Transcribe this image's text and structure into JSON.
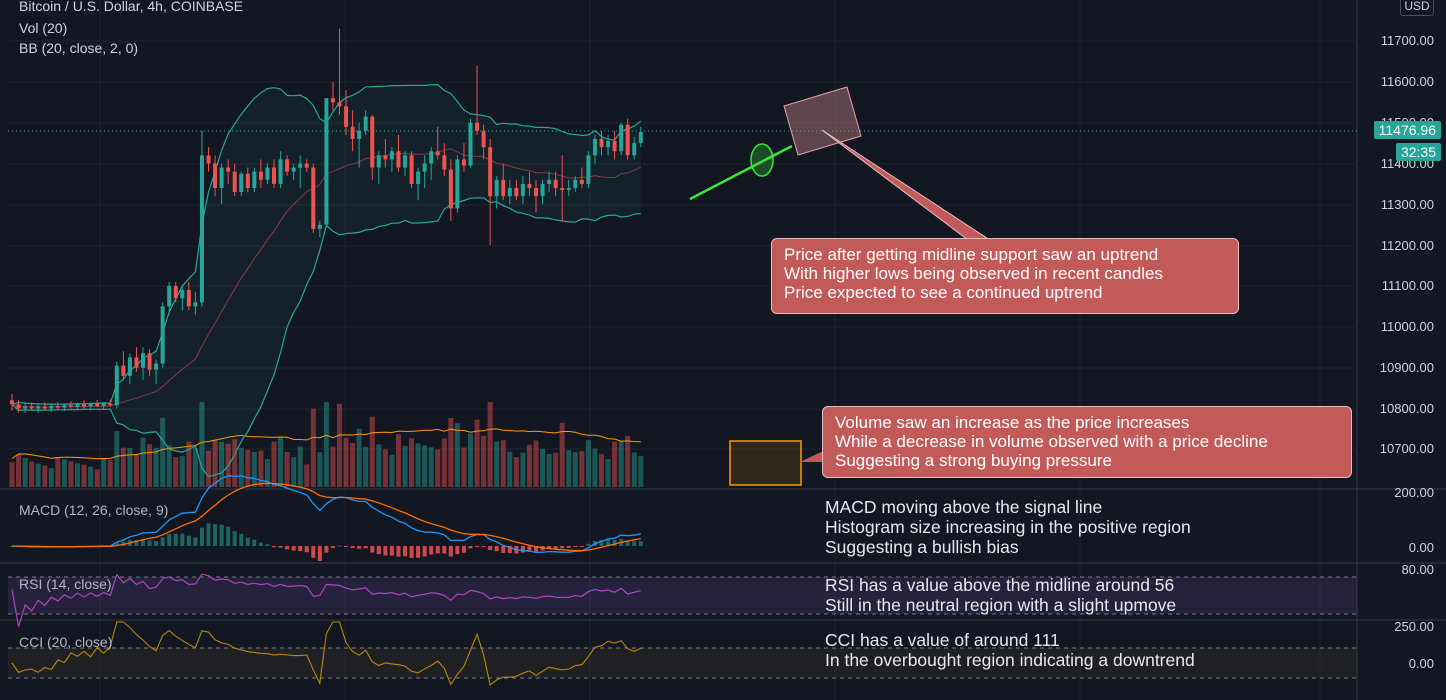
{
  "header": {
    "title": "Bitcoin / U.S. Dollar, 4h, COINBASE",
    "vol_label": "Vol (20)",
    "bb_label": "BB (20, close, 2, 0)",
    "currency": "USD"
  },
  "price_axis": {
    "labels": [
      "11700.00",
      "11600.00",
      "11500.00",
      "11400.00",
      "11300.00",
      "11200.00",
      "11100.00",
      "11000.00",
      "10900.00",
      "10800.00",
      "10700.00"
    ],
    "last_price": "11476.96",
    "countdown": "32:35"
  },
  "macd": {
    "label": "MACD (12, 26, close, 9)",
    "axis": [
      "200.00",
      "0.00"
    ],
    "notes": [
      "MACD moving above the signal line",
      "Histogram size increasing in the positive region",
      "Suggesting a bullish bias"
    ]
  },
  "rsi": {
    "label": "RSI (14, close)",
    "axis": [
      "80.00"
    ],
    "notes": [
      "RSI has a value above the midline around 56",
      "Still in the neutral region with a slight upmove"
    ]
  },
  "cci": {
    "label": "CCI (20, close)",
    "axis": [
      "250.00",
      "0.00"
    ],
    "notes": [
      "CCI has a value of around 111",
      "In the overbought region indicating a downtrend"
    ]
  },
  "callouts": {
    "price": [
      "Price after getting midline support saw an uptrend",
      "With higher lows being observed in recent candles",
      "Price expected to see a continued uptrend"
    ],
    "volume": [
      "Volume saw an increase as the price increases",
      "While a decrease in volume observed with a price decline",
      "Suggesting a strong buying pressure"
    ]
  },
  "colors": {
    "up": "#26a69a",
    "down": "#ef5350",
    "band": "#26a69a",
    "callout": "#c35a5a",
    "background": "#131722"
  },
  "chart_data": {
    "type": "candlestick",
    "title": "Bitcoin / U.S. Dollar, 4h, COINBASE",
    "ylim": [
      10660,
      11760
    ],
    "candles": [
      {
        "o": 10820,
        "h": 10835,
        "l": 10795,
        "c": 10810
      },
      {
        "o": 10810,
        "h": 10820,
        "l": 10790,
        "c": 10800
      },
      {
        "o": 10800,
        "h": 10815,
        "l": 10790,
        "c": 10805
      },
      {
        "o": 10805,
        "h": 10815,
        "l": 10795,
        "c": 10800
      },
      {
        "o": 10800,
        "h": 10810,
        "l": 10790,
        "c": 10805
      },
      {
        "o": 10805,
        "h": 10815,
        "l": 10795,
        "c": 10800
      },
      {
        "o": 10800,
        "h": 10810,
        "l": 10792,
        "c": 10806
      },
      {
        "o": 10806,
        "h": 10816,
        "l": 10798,
        "c": 10802
      },
      {
        "o": 10802,
        "h": 10812,
        "l": 10794,
        "c": 10808
      },
      {
        "o": 10808,
        "h": 10818,
        "l": 10800,
        "c": 10804
      },
      {
        "o": 10804,
        "h": 10814,
        "l": 10796,
        "c": 10810
      },
      {
        "o": 10810,
        "h": 10820,
        "l": 10800,
        "c": 10805
      },
      {
        "o": 10805,
        "h": 10815,
        "l": 10795,
        "c": 10811
      },
      {
        "o": 10811,
        "h": 10821,
        "l": 10803,
        "c": 10806
      },
      {
        "o": 10806,
        "h": 10816,
        "l": 10798,
        "c": 10812
      },
      {
        "o": 10812,
        "h": 10822,
        "l": 10804,
        "c": 10808
      },
      {
        "o": 10808,
        "h": 10915,
        "l": 10800,
        "c": 10905
      },
      {
        "o": 10905,
        "h": 10940,
        "l": 10870,
        "c": 10880
      },
      {
        "o": 10880,
        "h": 10935,
        "l": 10860,
        "c": 10925
      },
      {
        "o": 10925,
        "h": 10950,
        "l": 10890,
        "c": 10900
      },
      {
        "o": 10900,
        "h": 10950,
        "l": 10870,
        "c": 10935
      },
      {
        "o": 10935,
        "h": 10945,
        "l": 10880,
        "c": 10895
      },
      {
        "o": 10895,
        "h": 10920,
        "l": 10860,
        "c": 10910
      },
      {
        "o": 10910,
        "h": 11060,
        "l": 10900,
        "c": 11050
      },
      {
        "o": 11050,
        "h": 11110,
        "l": 11030,
        "c": 11100
      },
      {
        "o": 11100,
        "h": 11110,
        "l": 11060,
        "c": 11070
      },
      {
        "o": 11070,
        "h": 11100,
        "l": 11040,
        "c": 11090
      },
      {
        "o": 11090,
        "h": 11110,
        "l": 11040,
        "c": 11050
      },
      {
        "o": 11050,
        "h": 11085,
        "l": 11030,
        "c": 11060
      },
      {
        "o": 11060,
        "h": 11480,
        "l": 11050,
        "c": 11420
      },
      {
        "o": 11420,
        "h": 11440,
        "l": 11380,
        "c": 11400
      },
      {
        "o": 11400,
        "h": 11420,
        "l": 11320,
        "c": 11340
      },
      {
        "o": 11340,
        "h": 11400,
        "l": 11300,
        "c": 11390
      },
      {
        "o": 11390,
        "h": 11410,
        "l": 11350,
        "c": 11380
      },
      {
        "o": 11380,
        "h": 11400,
        "l": 11320,
        "c": 11330
      },
      {
        "o": 11330,
        "h": 11380,
        "l": 11320,
        "c": 11375
      },
      {
        "o": 11375,
        "h": 11390,
        "l": 11330,
        "c": 11340
      },
      {
        "o": 11340,
        "h": 11390,
        "l": 11330,
        "c": 11380
      },
      {
        "o": 11380,
        "h": 11410,
        "l": 11340,
        "c": 11360
      },
      {
        "o": 11360,
        "h": 11400,
        "l": 11350,
        "c": 11390
      },
      {
        "o": 11390,
        "h": 11410,
        "l": 11340,
        "c": 11350
      },
      {
        "o": 11350,
        "h": 11430,
        "l": 11340,
        "c": 11410
      },
      {
        "o": 11410,
        "h": 11420,
        "l": 11370,
        "c": 11380
      },
      {
        "o": 11380,
        "h": 11400,
        "l": 11360,
        "c": 11390
      },
      {
        "o": 11390,
        "h": 11420,
        "l": 11340,
        "c": 11400
      },
      {
        "o": 11400,
        "h": 11410,
        "l": 11380,
        "c": 11390
      },
      {
        "o": 11390,
        "h": 11400,
        "l": 11230,
        "c": 11240
      },
      {
        "o": 11240,
        "h": 11260,
        "l": 11220,
        "c": 11250
      },
      {
        "o": 11250,
        "h": 11560,
        "l": 11250,
        "c": 11560
      },
      {
        "o": 11560,
        "h": 11600,
        "l": 11530,
        "c": 11550
      },
      {
        "o": 11550,
        "h": 11730,
        "l": 11520,
        "c": 11540
      },
      {
        "o": 11540,
        "h": 11580,
        "l": 11470,
        "c": 11490
      },
      {
        "o": 11490,
        "h": 11530,
        "l": 11430,
        "c": 11460
      },
      {
        "o": 11460,
        "h": 11500,
        "l": 11390,
        "c": 11480
      },
      {
        "o": 11480,
        "h": 11530,
        "l": 11470,
        "c": 11515
      },
      {
        "o": 11515,
        "h": 11520,
        "l": 11360,
        "c": 11390
      },
      {
        "o": 11390,
        "h": 11430,
        "l": 11350,
        "c": 11420
      },
      {
        "o": 11420,
        "h": 11460,
        "l": 11390,
        "c": 11410
      },
      {
        "o": 11410,
        "h": 11440,
        "l": 11380,
        "c": 11430
      },
      {
        "o": 11430,
        "h": 11470,
        "l": 11380,
        "c": 11390
      },
      {
        "o": 11390,
        "h": 11430,
        "l": 11370,
        "c": 11420
      },
      {
        "o": 11420,
        "h": 11430,
        "l": 11340,
        "c": 11350
      },
      {
        "o": 11350,
        "h": 11390,
        "l": 11310,
        "c": 11380
      },
      {
        "o": 11380,
        "h": 11420,
        "l": 11340,
        "c": 11400
      },
      {
        "o": 11400,
        "h": 11440,
        "l": 11360,
        "c": 11430
      },
      {
        "o": 11430,
        "h": 11490,
        "l": 11410,
        "c": 11420
      },
      {
        "o": 11420,
        "h": 11450,
        "l": 11370,
        "c": 11385
      },
      {
        "o": 11385,
        "h": 11410,
        "l": 11260,
        "c": 11290
      },
      {
        "o": 11290,
        "h": 11420,
        "l": 11280,
        "c": 11410
      },
      {
        "o": 11410,
        "h": 11450,
        "l": 11380,
        "c": 11395
      },
      {
        "o": 11395,
        "h": 11510,
        "l": 11390,
        "c": 11500
      },
      {
        "o": 11500,
        "h": 11640,
        "l": 11470,
        "c": 11480
      },
      {
        "o": 11480,
        "h": 11495,
        "l": 11410,
        "c": 11440
      },
      {
        "o": 11440,
        "h": 11460,
        "l": 11200,
        "c": 11320
      },
      {
        "o": 11320,
        "h": 11370,
        "l": 11290,
        "c": 11360
      },
      {
        "o": 11360,
        "h": 11400,
        "l": 11310,
        "c": 11320
      },
      {
        "o": 11320,
        "h": 11360,
        "l": 11300,
        "c": 11340
      },
      {
        "o": 11340,
        "h": 11360,
        "l": 11310,
        "c": 11320
      },
      {
        "o": 11320,
        "h": 11370,
        "l": 11300,
        "c": 11350
      },
      {
        "o": 11350,
        "h": 11380,
        "l": 11320,
        "c": 11340
      },
      {
        "o": 11340,
        "h": 11360,
        "l": 11280,
        "c": 11320
      },
      {
        "o": 11320,
        "h": 11360,
        "l": 11300,
        "c": 11350
      },
      {
        "o": 11350,
        "h": 11380,
        "l": 11330,
        "c": 11360
      },
      {
        "o": 11360,
        "h": 11380,
        "l": 11320,
        "c": 11340
      },
      {
        "o": 11340,
        "h": 11420,
        "l": 11260,
        "c": 11335
      },
      {
        "o": 11335,
        "h": 11360,
        "l": 11320,
        "c": 11340
      },
      {
        "o": 11340,
        "h": 11370,
        "l": 11330,
        "c": 11360
      },
      {
        "o": 11360,
        "h": 11390,
        "l": 11340,
        "c": 11350
      },
      {
        "o": 11350,
        "h": 11430,
        "l": 11340,
        "c": 11420
      },
      {
        "o": 11420,
        "h": 11470,
        "l": 11400,
        "c": 11460
      },
      {
        "o": 11460,
        "h": 11480,
        "l": 11420,
        "c": 11440
      },
      {
        "o": 11440,
        "h": 11470,
        "l": 11420,
        "c": 11455
      },
      {
        "o": 11455,
        "h": 11480,
        "l": 11410,
        "c": 11430
      },
      {
        "o": 11430,
        "h": 11500,
        "l": 11420,
        "c": 11495
      },
      {
        "o": 11495,
        "h": 11510,
        "l": 11410,
        "c": 11420
      },
      {
        "o": 11420,
        "h": 11465,
        "l": 11410,
        "c": 11450
      },
      {
        "o": 11450,
        "h": 11490,
        "l": 11440,
        "c": 11477
      }
    ]
  }
}
